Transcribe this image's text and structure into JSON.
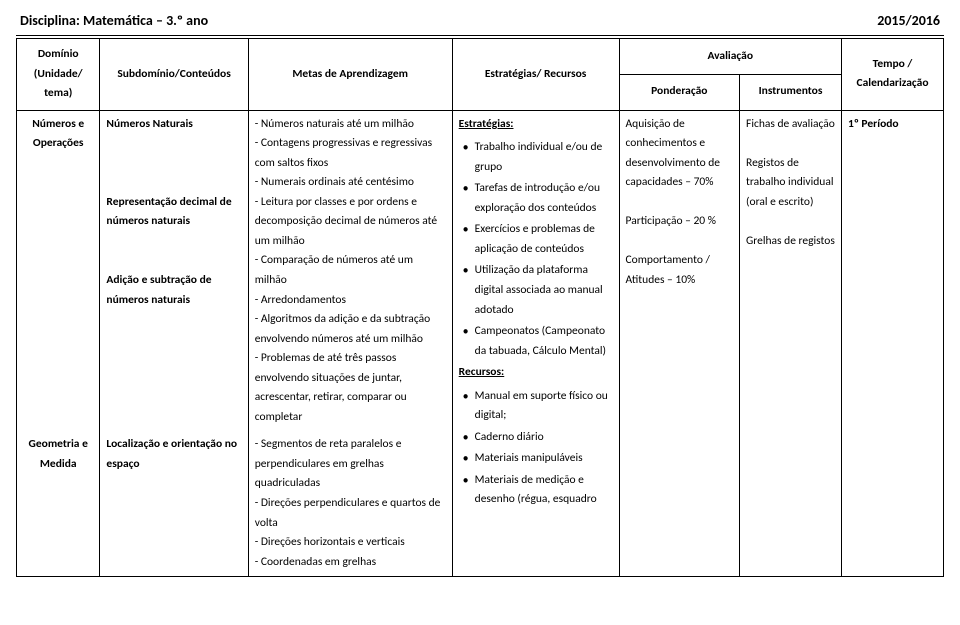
{
  "header": {
    "discipline": "Disciplina: Matemática – 3.º ano",
    "schoolyear": "2015/2016"
  },
  "columns": {
    "dominio": "Domínio (Unidade/ tema)",
    "sub": "Subdomínio/Conteúdos",
    "metas": "Metas de Aprendizagem",
    "estrat": "Estratégias/ Recursos",
    "aval": "Avaliação",
    "pond": "Ponderação",
    "instr": "Instrumentos",
    "tempo": "Tempo / Calendarização"
  },
  "row1": {
    "dominio": "Números e Operações",
    "sub_block1_title": "Números Naturais",
    "sub_block2_title": "Representação decimal de números naturais",
    "sub_block3_title": "Adição e subtração de números naturais",
    "metas": [
      "- Números naturais até um milhão",
      "- Contagens progressivas e regressivas com saltos fixos",
      "- Numerais ordinais até centésimo",
      "- Leitura por classes e por ordens e decomposição decimal de números até um milhão",
      "- Comparação de números até um milhão",
      "- Arredondamentos",
      "- Algoritmos da adição e da subtração envolvendo números até um milhão",
      "- Problemas de até três passos envolvendo situações de juntar, acrescentar, retirar, comparar ou completar"
    ],
    "estrat_title": "Estratégias:",
    "estrat_items": [
      "Trabalho individual e/ou de grupo",
      "Tarefas de introdução e/ou exploração dos conteúdos",
      "Exercícios e problemas de aplicação de conteúdos",
      "Utilização da plataforma digital associada ao manual adotado",
      "Campeonatos (Campeonato da tabuada, Cálculo Mental)"
    ],
    "recursos_title": "Recursos:",
    "recursos_items": [
      "Manual em suporte físico ou digital;",
      "Caderno diário",
      "Materiais manipuláveis",
      "Materiais de medição e desenho (régua, esquadro"
    ],
    "pond_lines": [
      "Aquisição de conhecimentos e desenvolvimento de capacidades – 70%",
      "Participação – 20 %",
      "Comportamento / Atitudes – 10%"
    ],
    "instr_lines": [
      "Fichas de avaliação",
      "Registos de trabalho individual (oral e escrito)",
      "Grelhas de registos"
    ],
    "tempo": "1º Período"
  },
  "row2": {
    "dominio": "Geometria e Medida",
    "sub_title": "Localização e orientação no espaço",
    "metas": [
      "- Segmentos de reta paralelos e perpendiculares em grelhas quadriculadas",
      "- Direções perpendiculares e quartos de volta",
      "- Direções horizontais e verticais",
      "- Coordenadas em grelhas"
    ]
  }
}
